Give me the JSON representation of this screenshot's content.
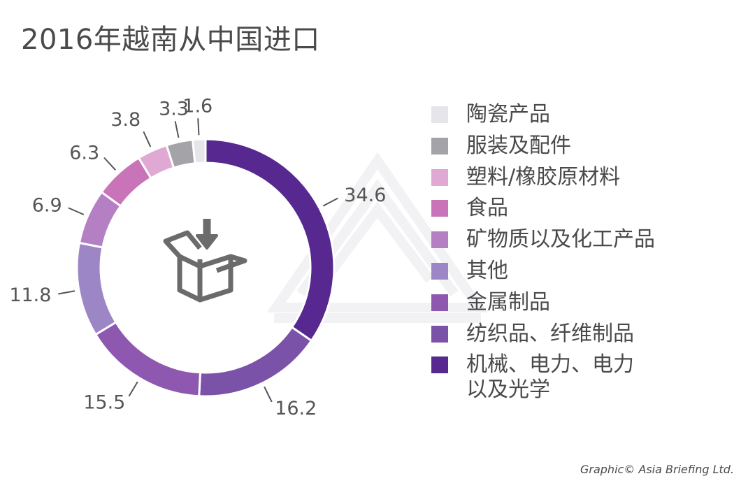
{
  "title": "2016年越南从中国进口",
  "credit": "Graphic© Asia Briefing Ltd.",
  "center_icon": "box-download-icon",
  "chart_data": {
    "type": "pie",
    "style": "donut",
    "title": "2016年越南从中国进口",
    "legend_position": "right",
    "slices": [
      {
        "label": "机械、电力、电力\n以及光学",
        "value": 34.6,
        "color": "#562890"
      },
      {
        "label": "纺织品、纤维制品",
        "value": 16.2,
        "color": "#7a52a8"
      },
      {
        "label": "金属制品",
        "value": 15.5,
        "color": "#8e58b0"
      },
      {
        "label": "其他",
        "value": 11.8,
        "color": "#9d86c6"
      },
      {
        "label": "矿物质以及化工产品",
        "value": 6.9,
        "color": "#b57fc4"
      },
      {
        "label": "食品",
        "value": 6.3,
        "color": "#c974b9"
      },
      {
        "label": "塑料/橡胶原材料",
        "value": 3.8,
        "color": "#dfa9d3"
      },
      {
        "label": "服装及配件",
        "value": 3.3,
        "color": "#a3a3a8"
      },
      {
        "label": "陶瓷产品",
        "value": 1.6,
        "color": "#e6e6ea"
      }
    ]
  }
}
